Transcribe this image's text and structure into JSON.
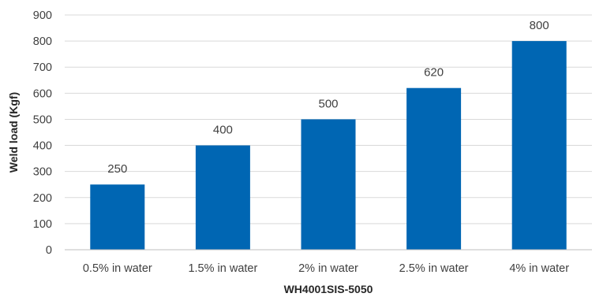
{
  "chart_data": {
    "type": "bar",
    "categories": [
      "0.5% in water",
      "1.5% in water",
      "2% in water",
      "2.5% in water",
      "4% in water"
    ],
    "values": [
      250,
      400,
      500,
      620,
      800
    ],
    "data_labels": [
      "250",
      "400",
      "500",
      "620",
      "800"
    ],
    "title": "",
    "xlabel": "WH4001SIS-5050",
    "ylabel": "Weld load (Kgf)",
    "ylim": [
      0,
      900
    ],
    "yticks": [
      0,
      100,
      200,
      300,
      400,
      500,
      600,
      700,
      800,
      900
    ],
    "ytick_labels": [
      "0",
      "100",
      "200",
      "300",
      "400",
      "500",
      "600",
      "700",
      "800",
      "900"
    ],
    "grid": true,
    "legend": "none",
    "bar_color": "#0066b3"
  }
}
